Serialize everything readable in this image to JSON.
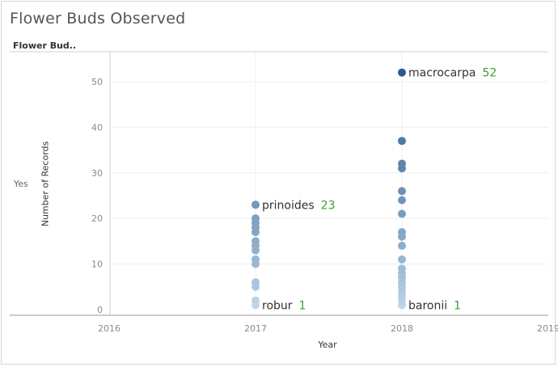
{
  "title": "Flower Buds Observed",
  "row_header": "Flower Bud..",
  "row_value": "Yes",
  "chart_data": {
    "type": "scatter",
    "xlabel": "Year",
    "ylabel": "Number of Records",
    "x_ticks": [
      "2016",
      "2017",
      "2018",
      "2019"
    ],
    "y_ticks": [
      0,
      10,
      20,
      30,
      40,
      50
    ],
    "xlim": [
      2016,
      2019
    ],
    "ylim": [
      0,
      55
    ],
    "grid": true,
    "points": [
      {
        "x": 2017,
        "y": 1
      },
      {
        "x": 2017,
        "y": 2
      },
      {
        "x": 2017,
        "y": 5
      },
      {
        "x": 2017,
        "y": 6
      },
      {
        "x": 2017,
        "y": 10
      },
      {
        "x": 2017,
        "y": 11
      },
      {
        "x": 2017,
        "y": 13
      },
      {
        "x": 2017,
        "y": 14
      },
      {
        "x": 2017,
        "y": 15
      },
      {
        "x": 2017,
        "y": 17
      },
      {
        "x": 2017,
        "y": 18
      },
      {
        "x": 2017,
        "y": 19
      },
      {
        "x": 2017,
        "y": 20
      },
      {
        "x": 2017,
        "y": 23
      },
      {
        "x": 2018,
        "y": 1
      },
      {
        "x": 2018,
        "y": 2
      },
      {
        "x": 2018,
        "y": 3
      },
      {
        "x": 2018,
        "y": 4
      },
      {
        "x": 2018,
        "y": 5
      },
      {
        "x": 2018,
        "y": 6
      },
      {
        "x": 2018,
        "y": 7
      },
      {
        "x": 2018,
        "y": 8
      },
      {
        "x": 2018,
        "y": 9
      },
      {
        "x": 2018,
        "y": 11
      },
      {
        "x": 2018,
        "y": 14
      },
      {
        "x": 2018,
        "y": 16
      },
      {
        "x": 2018,
        "y": 17
      },
      {
        "x": 2018,
        "y": 21
      },
      {
        "x": 2018,
        "y": 24
      },
      {
        "x": 2018,
        "y": 26
      },
      {
        "x": 2018,
        "y": 31
      },
      {
        "x": 2018,
        "y": 32
      },
      {
        "x": 2018,
        "y": 37
      },
      {
        "x": 2018,
        "y": 52
      }
    ],
    "color_light": "#c6dbef",
    "color_dark": "#2a5b8c",
    "annotations": [
      {
        "name": "prinoides",
        "value": "23",
        "x": 2017,
        "y": 23
      },
      {
        "name": "robur",
        "value": "1",
        "x": 2017,
        "y": 1
      },
      {
        "name": "macrocarpa",
        "value": "52",
        "x": 2018,
        "y": 52
      },
      {
        "name": "baronii",
        "value": "1",
        "x": 2018,
        "y": 1
      }
    ]
  }
}
